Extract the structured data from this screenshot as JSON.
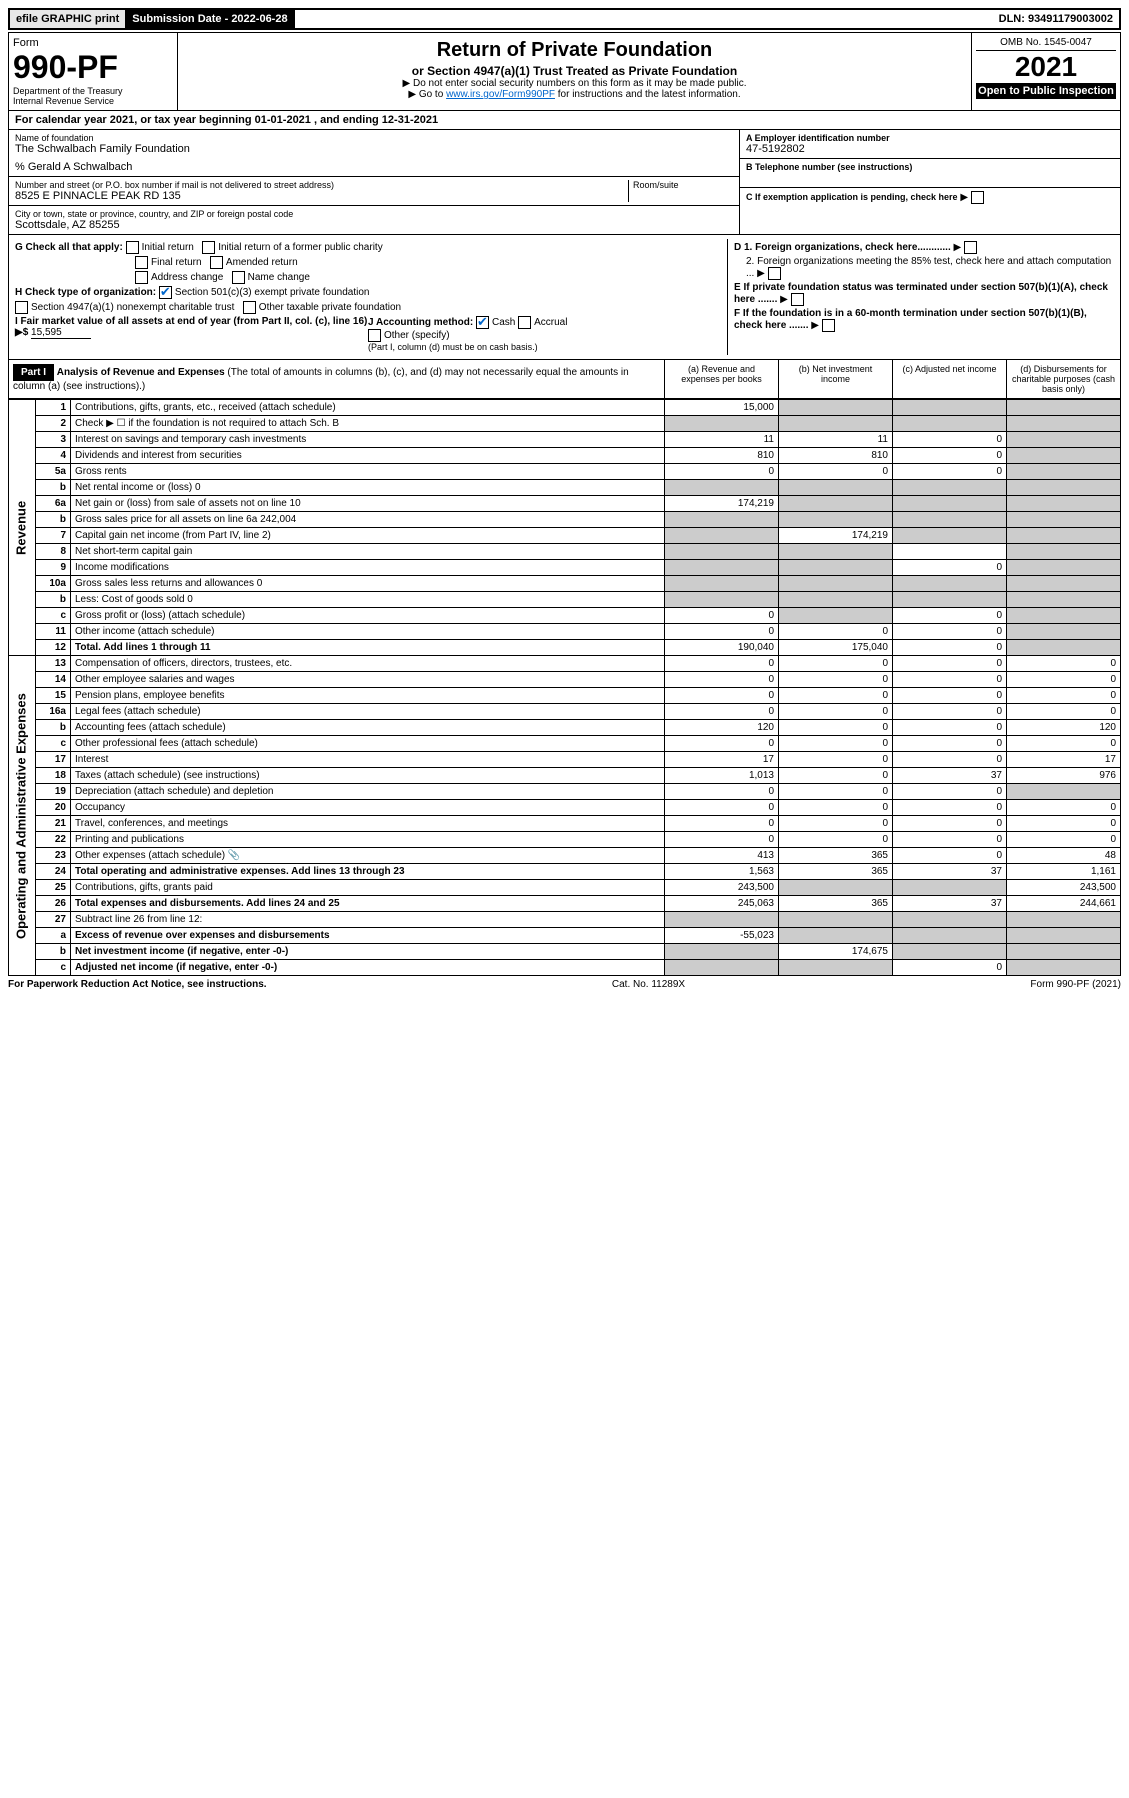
{
  "top": {
    "efile": "efile GRAPHIC print",
    "subdate_lbl": "Submission Date - 2022-06-28",
    "dln": "DLN: 93491179003002"
  },
  "header": {
    "form_word": "Form",
    "form_num": "990-PF",
    "dept": "Department of the Treasury",
    "irs": "Internal Revenue Service",
    "title": "Return of Private Foundation",
    "subtitle": "or Section 4947(a)(1) Trust Treated as Private Foundation",
    "instr1": "▶ Do not enter social security numbers on this form as it may be made public.",
    "instr2_pre": "▶ Go to ",
    "instr2_link": "www.irs.gov/Form990PF",
    "instr2_post": " for instructions and the latest information.",
    "omb": "OMB No. 1545-0047",
    "year": "2021",
    "open": "Open to Public Inspection"
  },
  "calyear": "For calendar year 2021, or tax year beginning 01-01-2021            , and ending 12-31-2021",
  "entity": {
    "name_lbl": "Name of foundation",
    "name": "The Schwalbach Family Foundation",
    "care_of": "% Gerald A Schwalbach",
    "addr_lbl": "Number and street (or P.O. box number if mail is not delivered to street address)",
    "addr": "8525 E PINNACLE PEAK RD 135",
    "room_lbl": "Room/suite",
    "city_lbl": "City or town, state or province, country, and ZIP or foreign postal code",
    "city": "Scottsdale, AZ  85255",
    "ein_lbl": "A Employer identification number",
    "ein": "47-5192802",
    "phone_lbl": "B Telephone number (see instructions)",
    "c_lbl": "C If exemption application is pending, check here",
    "d1": "D 1. Foreign organizations, check here............",
    "d2": "2. Foreign organizations meeting the 85% test, check here and attach computation ...",
    "e_lbl": "E  If private foundation status was terminated under section 507(b)(1)(A), check here .......",
    "f_lbl": "F  If the foundation is in a 60-month termination under section 507(b)(1)(B), check here .......",
    "g_lbl": "G Check all that apply:",
    "g_opts": [
      "Initial return",
      "Final return",
      "Address change",
      "Initial return of a former public charity",
      "Amended return",
      "Name change"
    ],
    "h_lbl": "H Check type of organization:",
    "h1": "Section 501(c)(3) exempt private foundation",
    "h2": "Section 4947(a)(1) nonexempt charitable trust",
    "h3": "Other taxable private foundation",
    "i_lbl": "I Fair market value of all assets at end of year (from Part II, col. (c), line 16) ▶$",
    "i_val": "15,595",
    "j_lbl": "J Accounting method:",
    "j_cash": "Cash",
    "j_accr": "Accrual",
    "j_other": "Other (specify)",
    "j_note": "(Part I, column (d) must be on cash basis.)"
  },
  "part1": {
    "label": "Part I",
    "title": "Analysis of Revenue and Expenses",
    "note": " (The total of amounts in columns (b), (c), and (d) may not necessarily equal the amounts in column (a) (see instructions).)",
    "col_a": "(a)   Revenue and expenses per books",
    "col_b": "(b)   Net investment income",
    "col_c": "(c)   Adjusted net income",
    "col_d": "(d)   Disbursements for charitable purposes (cash basis only)"
  },
  "side_rev": "Revenue",
  "side_exp": "Operating and Administrative Expenses",
  "rows": [
    {
      "n": "1",
      "d": "Contributions, gifts, grants, etc., received (attach schedule)",
      "a": "15,000",
      "b": "",
      "c": "",
      "dd": "",
      "sb": true,
      "sc": true,
      "sd": true
    },
    {
      "n": "2",
      "d": "Check ▶ ☐ if the foundation is not required to attach Sch. B",
      "a": "",
      "b": "",
      "c": "",
      "dd": "",
      "sa": true,
      "sb": true,
      "sc": true,
      "sd": true
    },
    {
      "n": "3",
      "d": "Interest on savings and temporary cash investments",
      "a": "11",
      "b": "11",
      "c": "0",
      "dd": "",
      "sd": true
    },
    {
      "n": "4",
      "d": "Dividends and interest from securities",
      "a": "810",
      "b": "810",
      "c": "0",
      "dd": "",
      "sd": true
    },
    {
      "n": "5a",
      "d": "Gross rents",
      "a": "0",
      "b": "0",
      "c": "0",
      "dd": "",
      "sd": true
    },
    {
      "n": "b",
      "d": "Net rental income or (loss)                                           0",
      "a": "",
      "b": "",
      "c": "",
      "dd": "",
      "sa": true,
      "sb": true,
      "sc": true,
      "sd": true
    },
    {
      "n": "6a",
      "d": "Net gain or (loss) from sale of assets not on line 10",
      "a": "174,219",
      "b": "",
      "c": "",
      "dd": "",
      "sb": true,
      "sc": true,
      "sd": true
    },
    {
      "n": "b",
      "d": "Gross sales price for all assets on line 6a              242,004",
      "a": "",
      "b": "",
      "c": "",
      "dd": "",
      "sa": true,
      "sb": true,
      "sc": true,
      "sd": true
    },
    {
      "n": "7",
      "d": "Capital gain net income (from Part IV, line 2)",
      "a": "",
      "b": "174,219",
      "c": "",
      "dd": "",
      "sa": true,
      "sc": true,
      "sd": true
    },
    {
      "n": "8",
      "d": "Net short-term capital gain",
      "a": "",
      "b": "",
      "c": "",
      "dd": "",
      "sa": true,
      "sb": true,
      "sd": true
    },
    {
      "n": "9",
      "d": "Income modifications",
      "a": "",
      "b": "",
      "c": "0",
      "dd": "",
      "sa": true,
      "sb": true,
      "sd": true
    },
    {
      "n": "10a",
      "d": "Gross sales less returns and allowances                      0",
      "a": "",
      "b": "",
      "c": "",
      "dd": "",
      "sa": true,
      "sb": true,
      "sc": true,
      "sd": true
    },
    {
      "n": "b",
      "d": "Less: Cost of goods sold                                              0",
      "a": "",
      "b": "",
      "c": "",
      "dd": "",
      "sa": true,
      "sb": true,
      "sc": true,
      "sd": true
    },
    {
      "n": "c",
      "d": "Gross profit or (loss) (attach schedule)",
      "a": "0",
      "b": "",
      "c": "0",
      "dd": "",
      "sb": true,
      "sd": true
    },
    {
      "n": "11",
      "d": "Other income (attach schedule)",
      "a": "0",
      "b": "0",
      "c": "0",
      "dd": "",
      "sd": true
    },
    {
      "n": "12",
      "d": "Total. Add lines 1 through 11",
      "a": "190,040",
      "b": "175,040",
      "c": "0",
      "dd": "",
      "bold": true,
      "sd": true
    },
    {
      "n": "13",
      "d": "Compensation of officers, directors, trustees, etc.",
      "a": "0",
      "b": "0",
      "c": "0",
      "dd": "0"
    },
    {
      "n": "14",
      "d": "Other employee salaries and wages",
      "a": "0",
      "b": "0",
      "c": "0",
      "dd": "0"
    },
    {
      "n": "15",
      "d": "Pension plans, employee benefits",
      "a": "0",
      "b": "0",
      "c": "0",
      "dd": "0"
    },
    {
      "n": "16a",
      "d": "Legal fees (attach schedule)",
      "a": "0",
      "b": "0",
      "c": "0",
      "dd": "0"
    },
    {
      "n": "b",
      "d": "Accounting fees (attach schedule)",
      "a": "120",
      "b": "0",
      "c": "0",
      "dd": "120"
    },
    {
      "n": "c",
      "d": "Other professional fees (attach schedule)",
      "a": "0",
      "b": "0",
      "c": "0",
      "dd": "0"
    },
    {
      "n": "17",
      "d": "Interest",
      "a": "17",
      "b": "0",
      "c": "0",
      "dd": "17"
    },
    {
      "n": "18",
      "d": "Taxes (attach schedule) (see instructions)",
      "a": "1,013",
      "b": "0",
      "c": "37",
      "dd": "976"
    },
    {
      "n": "19",
      "d": "Depreciation (attach schedule) and depletion",
      "a": "0",
      "b": "0",
      "c": "0",
      "dd": "",
      "sd": true
    },
    {
      "n": "20",
      "d": "Occupancy",
      "a": "0",
      "b": "0",
      "c": "0",
      "dd": "0"
    },
    {
      "n": "21",
      "d": "Travel, conferences, and meetings",
      "a": "0",
      "b": "0",
      "c": "0",
      "dd": "0"
    },
    {
      "n": "22",
      "d": "Printing and publications",
      "a": "0",
      "b": "0",
      "c": "0",
      "dd": "0"
    },
    {
      "n": "23",
      "d": "Other expenses (attach schedule)           📎",
      "a": "413",
      "b": "365",
      "c": "0",
      "dd": "48"
    },
    {
      "n": "24",
      "d": "Total operating and administrative expenses. Add lines 13 through 23",
      "a": "1,563",
      "b": "365",
      "c": "37",
      "dd": "1,161",
      "bold": true
    },
    {
      "n": "25",
      "d": "Contributions, gifts, grants paid",
      "a": "243,500",
      "b": "",
      "c": "",
      "dd": "243,500",
      "sb": true,
      "sc": true
    },
    {
      "n": "26",
      "d": "Total expenses and disbursements. Add lines 24 and 25",
      "a": "245,063",
      "b": "365",
      "c": "37",
      "dd": "244,661",
      "bold": true
    },
    {
      "n": "27",
      "d": "Subtract line 26 from line 12:",
      "a": "",
      "b": "",
      "c": "",
      "dd": "",
      "sa": true,
      "sb": true,
      "sc": true,
      "sd": true
    },
    {
      "n": "a",
      "d": "Excess of revenue over expenses and disbursements",
      "a": "-55,023",
      "b": "",
      "c": "",
      "dd": "",
      "bold": true,
      "sb": true,
      "sc": true,
      "sd": true
    },
    {
      "n": "b",
      "d": "Net investment income (if negative, enter -0-)",
      "a": "",
      "b": "174,675",
      "c": "",
      "dd": "",
      "bold": true,
      "sa": true,
      "sc": true,
      "sd": true
    },
    {
      "n": "c",
      "d": "Adjusted net income (if negative, enter -0-)",
      "a": "",
      "b": "",
      "c": "0",
      "dd": "",
      "bold": true,
      "sa": true,
      "sb": true,
      "sd": true
    }
  ],
  "footer": {
    "left": "For Paperwork Reduction Act Notice, see instructions.",
    "mid": "Cat. No. 11289X",
    "right": "Form 990-PF (2021)"
  }
}
